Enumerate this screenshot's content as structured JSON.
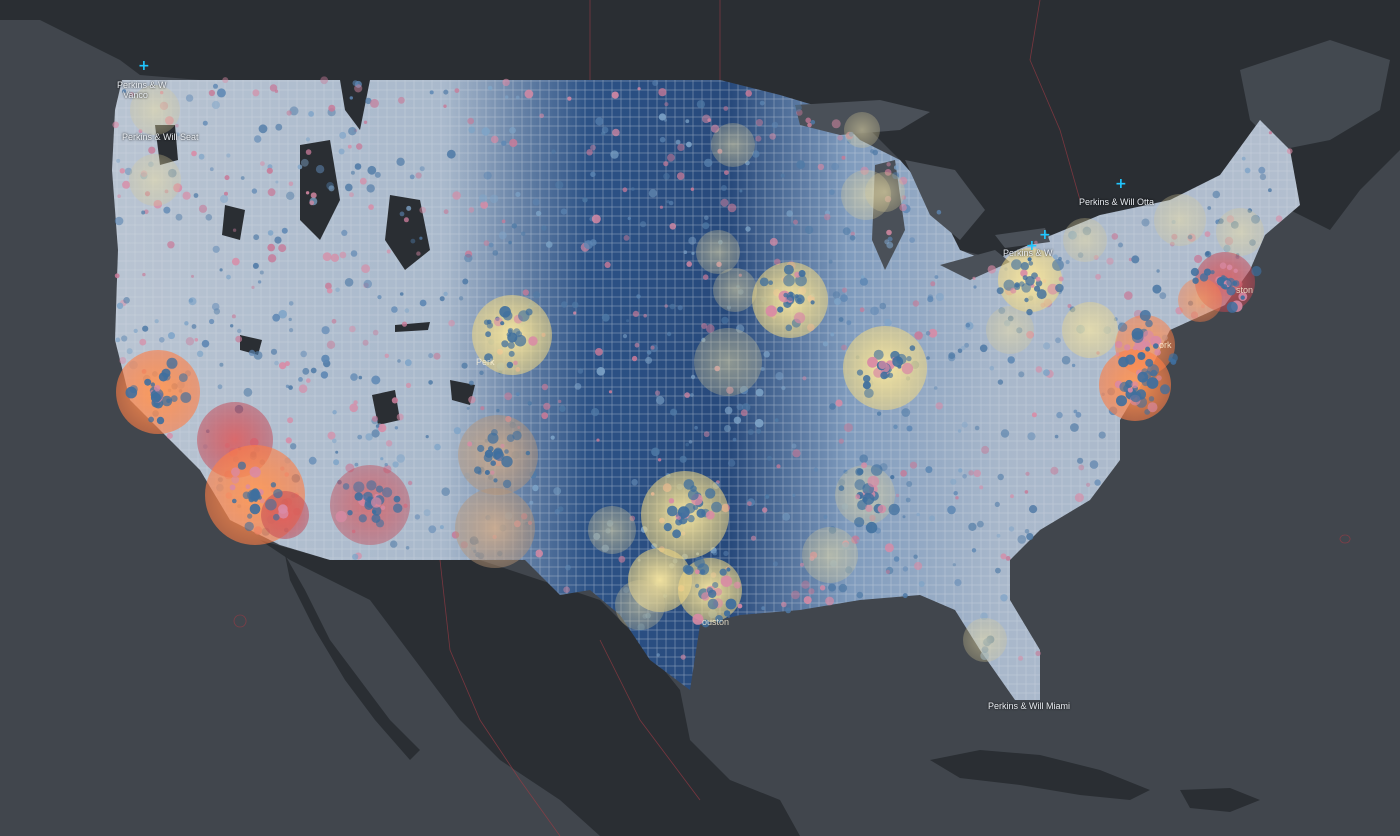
{
  "map": {
    "basemap": "dark-gray-canvas",
    "colors": {
      "ocean": "#41464d",
      "land": "#2a2e33",
      "water_bodies": "#4a5058",
      "borders": "#9b3b44",
      "grid_light": "#b8c3d1",
      "grid_mid": "#6f8fb6",
      "grid_dark": "#1f3f6e",
      "dot_blue": "#4f7aa6",
      "dot_pink": "#d98aa5",
      "halo_yellow": "#f3df8e",
      "halo_orange": "#ff8a4c",
      "halo_red": "#d94a4f",
      "halo_tan": "#c9a27d",
      "marker": "#20c6ff"
    }
  },
  "offices": [
    {
      "id": "vancouver",
      "label_lines": [
        "Perkins & W",
        "Vanco"
      ],
      "icon": "plus-marker-icon"
    },
    {
      "id": "seattle",
      "label_lines": [
        "Perkins & Will Seat"
      ],
      "icon": "plus-marker-icon"
    },
    {
      "id": "ottawa",
      "label_lines": [
        "Perkins & Will Otta"
      ],
      "icon": "plus-marker-icon"
    },
    {
      "id": "toronto",
      "label_lines": [
        "Perkins & W"
      ],
      "icon": "plus-marker-icon"
    },
    {
      "id": "miami",
      "label_lines": [
        "Perkins & Will Miami"
      ],
      "icon": "none"
    }
  ],
  "city_tags": [
    {
      "id": "boston",
      "text": "ston"
    },
    {
      "id": "newyork",
      "text": "ork"
    },
    {
      "id": "houston",
      "text": "ouston"
    },
    {
      "id": "denver",
      "text": "Perk"
    }
  ]
}
